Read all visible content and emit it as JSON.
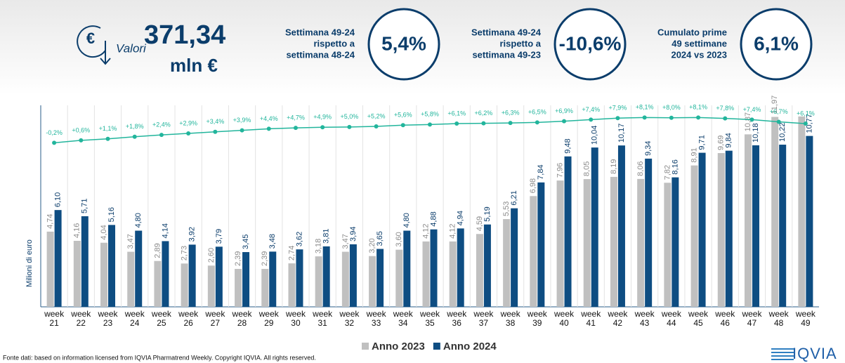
{
  "header": {
    "label": "Valori",
    "value": "371,34",
    "unit": "mln €"
  },
  "kpis": [
    {
      "label": [
        "Settimana 49-24",
        "rispetto a",
        "settimana 48-24"
      ],
      "value": "5,4%"
    },
    {
      "label": [
        "Settimana 49-24",
        "rispetto a",
        "settimana 49-23"
      ],
      "value": "-10,6%"
    },
    {
      "label": [
        "Cumulato prime",
        "49 settimane",
        "2024 vs 2023"
      ],
      "value": "6,1%"
    }
  ],
  "chart_data": {
    "type": "bar",
    "y_label": "Milioni di euro",
    "categories": [
      "week 21",
      "week 22",
      "week 23",
      "week 24",
      "week 25",
      "week 26",
      "week 27",
      "week 28",
      "week 29",
      "week 30",
      "week 31",
      "week 32",
      "week 33",
      "week 34",
      "week 35",
      "week 36",
      "week 37",
      "week 38",
      "week 39",
      "week 40",
      "week 41",
      "week 42",
      "week 43",
      "week 44",
      "week 45",
      "week 46",
      "week 47",
      "week 48",
      "week 49"
    ],
    "ylim": [
      0,
      12.7
    ],
    "y2lim": [
      -54,
      12.1
    ],
    "series": [
      {
        "name": "Anno 2023",
        "color": "#c0c0c0",
        "label_color": "#8c8c8c",
        "values": [
          4.74,
          4.16,
          4.04,
          3.47,
          2.89,
          2.73,
          2.6,
          2.39,
          2.39,
          2.74,
          3.18,
          3.47,
          3.2,
          3.6,
          4.12,
          4.12,
          4.59,
          5.53,
          6.98,
          7.96,
          8.05,
          8.19,
          8.06,
          7.82,
          8.91,
          9.69,
          10.87,
          11.97,
          12.0
        ],
        "value_labels": [
          "4,74",
          "4,16",
          "4,04",
          "3,47",
          "2,89",
          "2,73",
          "2,60",
          "2,39",
          "2,39",
          "2,74",
          "3,18",
          "3,47",
          "3,20",
          "3,60",
          "4,12",
          "4,12",
          "4,59",
          "5,53",
          "6,98",
          "7,96",
          "8,05",
          "8,19",
          "8,06",
          "7,82",
          "8,91",
          "9,69",
          "10,87",
          "11,97",
          null
        ]
      },
      {
        "name": "Anno 2024",
        "color": "#0e4d82",
        "label_color": "#0b3d6b",
        "values": [
          6.1,
          5.71,
          5.16,
          4.8,
          4.14,
          3.92,
          3.79,
          3.45,
          3.48,
          3.62,
          3.81,
          3.94,
          3.65,
          4.8,
          4.88,
          4.94,
          5.19,
          6.21,
          7.84,
          9.48,
          10.04,
          10.17,
          9.34,
          8.16,
          9.71,
          9.84,
          10.18,
          10.22,
          10.77
        ],
        "value_labels": [
          "6,10",
          "5,71",
          "5,16",
          "4,80",
          "4,14",
          "3,92",
          "3,79",
          "3,45",
          "3,48",
          "3,62",
          "3,81",
          "3,94",
          "3,65",
          "4,80",
          "4,88",
          "4,94",
          "5,19",
          "6,21",
          "7,84",
          "9,48",
          "10,04",
          "10,17",
          "9,34",
          "8,16",
          "9,71",
          "9,84",
          "10,18",
          "10,22",
          "10,77"
        ]
      },
      {
        "type": "line",
        "axis": "y2",
        "color": "#22b59c",
        "values": [
          -0.2,
          0.6,
          1.1,
          1.8,
          2.4,
          2.9,
          3.4,
          3.9,
          4.4,
          4.7,
          4.9,
          5.0,
          5.2,
          5.6,
          5.8,
          6.1,
          6.2,
          6.3,
          6.5,
          6.9,
          7.4,
          7.9,
          8.1,
          8.0,
          8.1,
          7.8,
          7.4,
          6.7,
          6.1
        ],
        "value_labels": [
          "-0,2%",
          "+0,6%",
          "+1,1%",
          "+1,8%",
          "+2,4%",
          "+2,9%",
          "+3,4%",
          "+3,9%",
          "+4,4%",
          "+4,7%",
          "+4,9%",
          "+5,0%",
          "+5,2%",
          "+5,6%",
          "+5,8%",
          "+6,1%",
          "+6,2%",
          "+6,3%",
          "+6,5%",
          "+6,9%",
          "+7,4%",
          "+7,9%",
          "+8,1%",
          "+8,0%",
          "+8,1%",
          "+7,8%",
          "+7,4%",
          "+6,7%",
          "+6,1%"
        ]
      }
    ]
  },
  "footer": {
    "source": "Fonte dati: based on information licensed from IQVIA Pharmatrend Weekly. Copyright IQVIA. All rights reserved.",
    "logo": "IQVIA"
  }
}
